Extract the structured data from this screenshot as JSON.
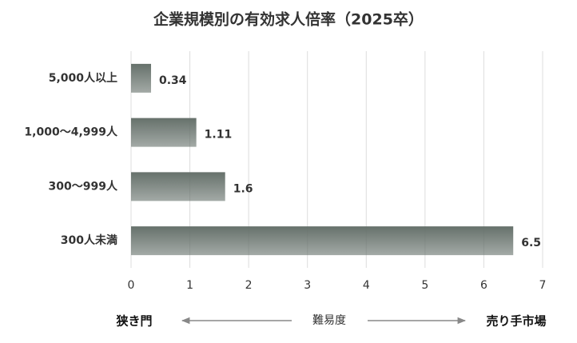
{
  "chart_data": {
    "type": "hbar",
    "title": "企業規模別の有効求人倍率（2025卒）",
    "categories": [
      "5,000人以上",
      "1,000〜4,999人",
      "300〜999人",
      "300人未満"
    ],
    "values": [
      0.34,
      1.11,
      1.6,
      6.5
    ],
    "color": "#66716b",
    "xlim": [
      0,
      7
    ],
    "xticks": [
      0,
      1,
      2,
      3,
      4,
      5,
      6,
      7
    ],
    "grid": true,
    "annotations": {
      "left": "狭き門",
      "center": "難易度",
      "right": "売り手市場"
    }
  }
}
